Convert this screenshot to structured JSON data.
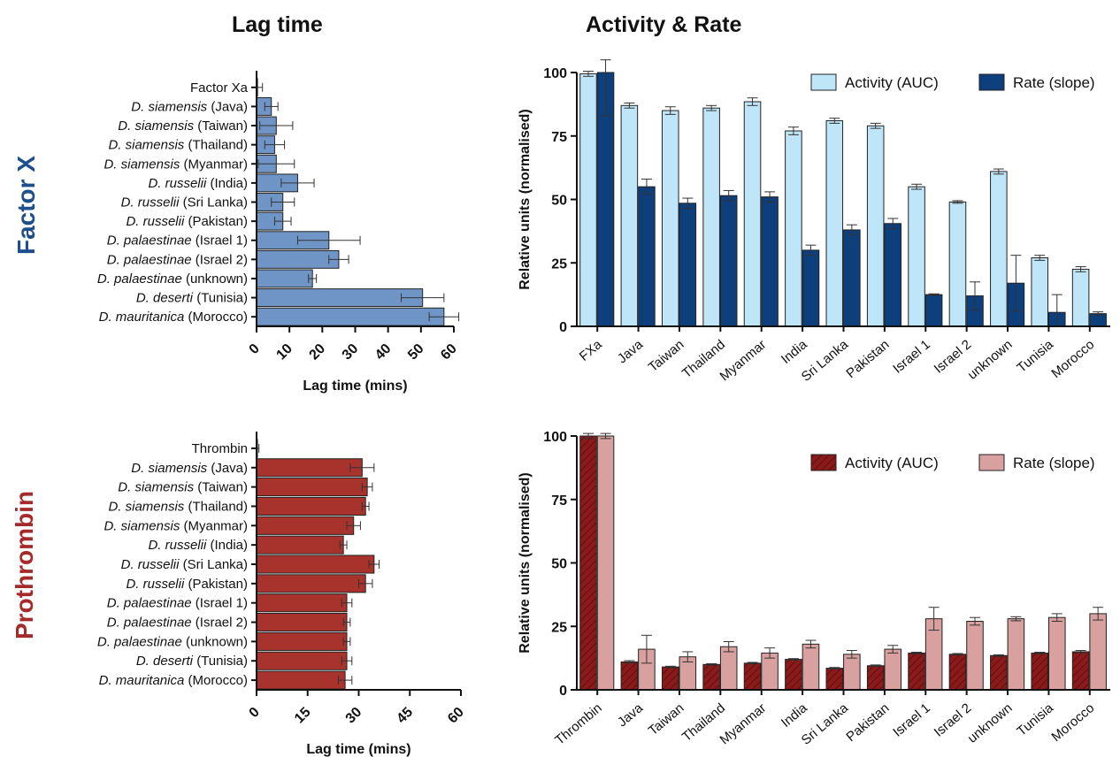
{
  "headers": {
    "left": "Lag time",
    "right": "Activity & Rate"
  },
  "row_labels": {
    "top": {
      "text": "Factor X",
      "color": "#1f4e8c"
    },
    "bottom": {
      "text": "Prothrombin",
      "color": "#a52a2a"
    }
  },
  "chart_data": [
    {
      "type": "bar",
      "orientation": "horizontal",
      "panel": "Factor X lag time",
      "xlabel": "Lag time (mins)",
      "ylabel": "",
      "xlim": [
        0,
        60
      ],
      "xticks": [
        0,
        10,
        20,
        30,
        40,
        50,
        60
      ],
      "categories": [
        [
          "Factor Xa",
          ""
        ],
        [
          "D. siamensis",
          " (Java)"
        ],
        [
          "D. siamensis",
          " (Taiwan)"
        ],
        [
          "D. siamensis",
          " (Thailand)"
        ],
        [
          "D. siamensis",
          " (Myanmar)"
        ],
        [
          "D. russelii",
          " (India)"
        ],
        [
          "D. russelii",
          " (Sri Lanka)"
        ],
        [
          "D. russelii",
          " (Pakistan)"
        ],
        [
          "D. palaestinae",
          " (Israel 1)"
        ],
        [
          "D. palaestinae",
          " (Israel 2)"
        ],
        [
          "D. palaestinae",
          " (unknown)"
        ],
        [
          "D. deserti",
          " (Tunisia)"
        ],
        [
          "D. mauritanica",
          " (Morocco)"
        ]
      ],
      "italic_first_part": true,
      "values": [
        0.3,
        4.5,
        6,
        5.5,
        6,
        12.5,
        8,
        8,
        22,
        25,
        17,
        50.5,
        57
      ],
      "errors": [
        1.5,
        2,
        5,
        3,
        5.5,
        5,
        3.5,
        2.5,
        9.5,
        3,
        1.2,
        6.5,
        4.5
      ],
      "color": "#6f95c6",
      "grid": false
    },
    {
      "type": "bar",
      "panel": "Factor X activity & rate",
      "xlabel": "",
      "ylabel": "Relative units (normalised)",
      "ylim": [
        0,
        100
      ],
      "yticks": [
        0,
        25,
        50,
        75,
        100
      ],
      "categories": [
        "FXa",
        "Java",
        "Taiwan",
        "Thailand",
        "Myanmar",
        "India",
        "Sri Lanka",
        "Pakistan",
        "Israel 1",
        "Israel 2",
        "unknown",
        "Tunisia",
        "Morocco"
      ],
      "series": [
        {
          "name": "Activity (AUC)",
          "color": "#bfe6f8",
          "pattern": "solid",
          "values": [
            99.5,
            87,
            85,
            86,
            88.5,
            77,
            81,
            79,
            55,
            49,
            61,
            27,
            22.5
          ],
          "errors": [
            1,
            1,
            1.5,
            1,
            1.5,
            1.5,
            1,
            1,
            1,
            0.5,
            1,
            1,
            1
          ]
        },
        {
          "name": "Rate (slope)",
          "color": "#0d3f7d",
          "pattern": "solid",
          "values": [
            100,
            55,
            48.5,
            51.5,
            51,
            30,
            38,
            40.5,
            12.5,
            12,
            17,
            5.5,
            5
          ],
          "errors": [
            17,
            3,
            2,
            2,
            2,
            2,
            2,
            2,
            0.3,
            5.5,
            11,
            7,
            0.7
          ]
        }
      ],
      "legend": "top-right",
      "grid": false
    },
    {
      "type": "bar",
      "orientation": "horizontal",
      "panel": "Prothrombin lag time",
      "xlabel": "Lag time (mins)",
      "ylabel": "",
      "xlim": [
        0,
        60
      ],
      "xticks": [
        0,
        15,
        30,
        45,
        60
      ],
      "categories": [
        [
          "Thrombin",
          ""
        ],
        [
          "D. siamensis",
          " (Java)"
        ],
        [
          "D. siamensis",
          " (Taiwan)"
        ],
        [
          "D. siamensis",
          " (Thailand)"
        ],
        [
          "D. siamensis",
          " (Myanmar)"
        ],
        [
          "D. russelii",
          " (India)"
        ],
        [
          "D. russelii",
          " (Sri Lanka)"
        ],
        [
          "D. russelii",
          " (Pakistan)"
        ],
        [
          "D. palaestinae",
          " (Israel 1)"
        ],
        [
          "D. palaestinae",
          " (Israel 2)"
        ],
        [
          "D. palaestinae",
          " (unknown)"
        ],
        [
          "D. deserti",
          " (Tunisia)"
        ],
        [
          "D. mauritanica",
          " (Morocco)"
        ]
      ],
      "italic_first_part": true,
      "values": [
        0.2,
        31,
        32.5,
        32,
        28.5,
        25.5,
        34.5,
        32,
        26.5,
        26.5,
        26.5,
        26.5,
        26
      ],
      "errors": [
        0.5,
        3.5,
        1.5,
        1,
        2,
        1,
        1.5,
        2,
        1.5,
        1,
        1,
        1.5,
        2
      ],
      "color": "#a8332d",
      "grid": false
    },
    {
      "type": "bar",
      "panel": "Prothrombin activity & rate",
      "xlabel": "",
      "ylabel": "Relative units (normalised)",
      "ylim": [
        0,
        100
      ],
      "yticks": [
        0,
        25,
        50,
        75,
        100
      ],
      "categories": [
        "Thrombin",
        "Java",
        "Taiwan",
        "Thailand",
        "Myanmar",
        "India",
        "Sri Lanka",
        "Pakistan",
        "Israel 1",
        "Israel 2",
        "unknown",
        "Tunisia",
        "Morocco"
      ],
      "series": [
        {
          "name": "Activity (AUC)",
          "color": "#8b1a1a",
          "pattern": "hatched",
          "values": [
            100,
            11,
            9,
            10,
            10.5,
            12,
            8.5,
            9.5,
            14.5,
            14,
            13.5,
            14.5,
            15
          ],
          "errors": [
            1,
            0.5,
            0.3,
            0.3,
            0.3,
            0.3,
            0.3,
            0.3,
            0.3,
            0.3,
            0.3,
            0.3,
            0.5
          ]
        },
        {
          "name": "Rate (slope)",
          "color": "#d9a0a0",
          "pattern": "solid",
          "values": [
            100,
            16,
            13,
            17,
            14.5,
            18,
            14,
            16,
            28,
            27,
            28,
            28.5,
            30
          ],
          "errors": [
            1,
            5.5,
            2,
            2,
            2,
            1.5,
            1.5,
            1.5,
            4.5,
            1.5,
            0.8,
            1.5,
            2.5
          ]
        }
      ],
      "legend": "top-right",
      "grid": false
    }
  ]
}
